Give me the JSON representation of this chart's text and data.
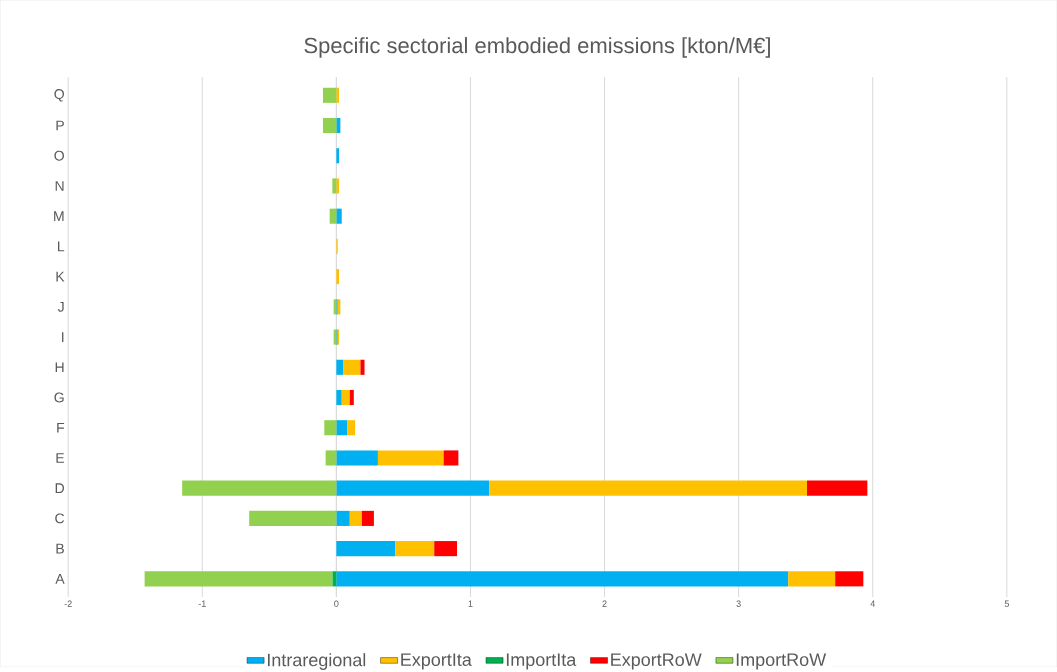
{
  "chart_data": {
    "type": "bar",
    "orientation": "horizontal",
    "stacked": true,
    "title": "Specific sectorial embodied emissions [kton/M€]",
    "categories": [
      "Q",
      "P",
      "O",
      "N",
      "M",
      "L",
      "K",
      "J",
      "I",
      "H",
      "G",
      "F",
      "E",
      "D",
      "C",
      "B",
      "A"
    ],
    "series": [
      {
        "name": "Intraregional",
        "color": "#00b0f0",
        "values": [
          0,
          0.03,
          0.02,
          0,
          0.04,
          0,
          0,
          0.01,
          0.01,
          0.05,
          0.04,
          0.08,
          0.31,
          1.14,
          0.1,
          0.44,
          3.37
        ]
      },
      {
        "name": "ExportIta",
        "color": "#ffc000",
        "values": [
          0.02,
          0,
          0,
          0.02,
          0,
          0.01,
          0.02,
          0.02,
          0.01,
          0.13,
          0.06,
          0.06,
          0.49,
          2.37,
          0.09,
          0.29,
          0.35
        ]
      },
      {
        "name": "ImportIta",
        "color": "#00b050",
        "values": [
          0,
          0,
          0,
          0,
          0,
          0,
          0,
          0,
          0,
          0,
          0,
          0,
          0,
          0,
          0,
          0,
          -0.03
        ]
      },
      {
        "name": "ExportRoW",
        "color": "#ff0000",
        "values": [
          0,
          0,
          0,
          0,
          0,
          0,
          0,
          0,
          0,
          0.03,
          0.03,
          0,
          0.11,
          0.45,
          0.09,
          0.17,
          0.21
        ]
      },
      {
        "name": "ImportRoW",
        "color": "#92d050",
        "values": [
          -0.1,
          -0.1,
          0,
          -0.03,
          -0.05,
          0,
          0,
          -0.02,
          -0.02,
          0,
          0,
          -0.09,
          -0.08,
          -1.15,
          -0.65,
          0,
          -1.4
        ]
      }
    ],
    "xlim": [
      -2,
      5
    ],
    "xticks": [
      -2,
      -1,
      0,
      1,
      2,
      3,
      4,
      5
    ],
    "grid": "x",
    "legend": "bottom"
  }
}
